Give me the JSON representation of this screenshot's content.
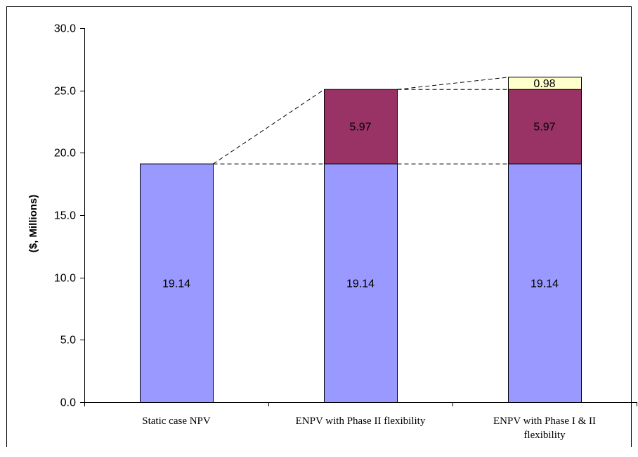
{
  "chart_data": {
    "type": "bar",
    "stacked": true,
    "categories": [
      [
        "Static case NPV"
      ],
      [
        "ENPV with Phase II flexibility"
      ],
      [
        "ENPV with Phase I & II",
        "flexibility"
      ]
    ],
    "series": [
      {
        "values": [
          19.14,
          19.14,
          19.14
        ],
        "labels": [
          "19.14",
          "19.14",
          "19.14"
        ],
        "color": "#9999ff"
      },
      {
        "values": [
          0,
          5.97,
          5.97
        ],
        "labels": [
          "",
          "5.97",
          "5.97"
        ],
        "color": "#993366"
      },
      {
        "values": [
          0,
          0,
          0.98
        ],
        "labels": [
          "",
          "",
          "0.98"
        ],
        "color": "#ffffcc"
      }
    ],
    "ylabel": "($, Millions)",
    "xlabel": "",
    "ylim": [
      0,
      30
    ],
    "yticks": [
      "0.0",
      "5.0",
      "10.0",
      "15.0",
      "20.0",
      "25.0",
      "30.0"
    ],
    "grid": false,
    "legend": "none",
    "connector_lines": "dashed"
  }
}
